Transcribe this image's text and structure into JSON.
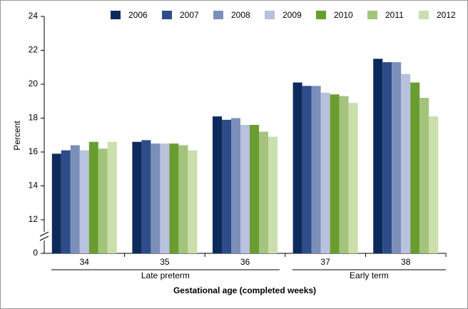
{
  "chart_data": {
    "type": "bar",
    "y_label": "Percent",
    "x_label": "Gestational age (completed weeks)",
    "categories": [
      "34",
      "35",
      "36",
      "37",
      "38"
    ],
    "group_labels": [
      "Late preterm",
      "Early term"
    ],
    "series": [
      {
        "name": "2006",
        "color": "#0c2a5c",
        "values": [
          15.9,
          16.6,
          18.1,
          20.1,
          21.5
        ]
      },
      {
        "name": "2007",
        "color": "#2d4c89",
        "values": [
          16.1,
          16.7,
          17.9,
          19.9,
          21.3
        ]
      },
      {
        "name": "2008",
        "color": "#7b8fb8",
        "values": [
          16.4,
          16.5,
          18.0,
          19.9,
          21.3
        ]
      },
      {
        "name": "2009",
        "color": "#b8c1de",
        "values": [
          16.1,
          16.5,
          17.6,
          19.5,
          20.6
        ]
      },
      {
        "name": "2010",
        "color": "#6a9d2f",
        "values": [
          16.6,
          16.5,
          17.6,
          19.4,
          20.1
        ]
      },
      {
        "name": "2011",
        "color": "#a4c47d",
        "values": [
          16.2,
          16.4,
          17.2,
          19.3,
          19.2
        ]
      },
      {
        "name": "2012",
        "color": "#cadfab",
        "values": [
          16.6,
          16.1,
          16.9,
          18.9,
          18.1
        ]
      }
    ],
    "ylim": [
      0,
      24
    ],
    "yticks": [
      0,
      12,
      14,
      16,
      18,
      20,
      22,
      24
    ],
    "axis_break": [
      0,
      12
    ],
    "grid": false
  }
}
